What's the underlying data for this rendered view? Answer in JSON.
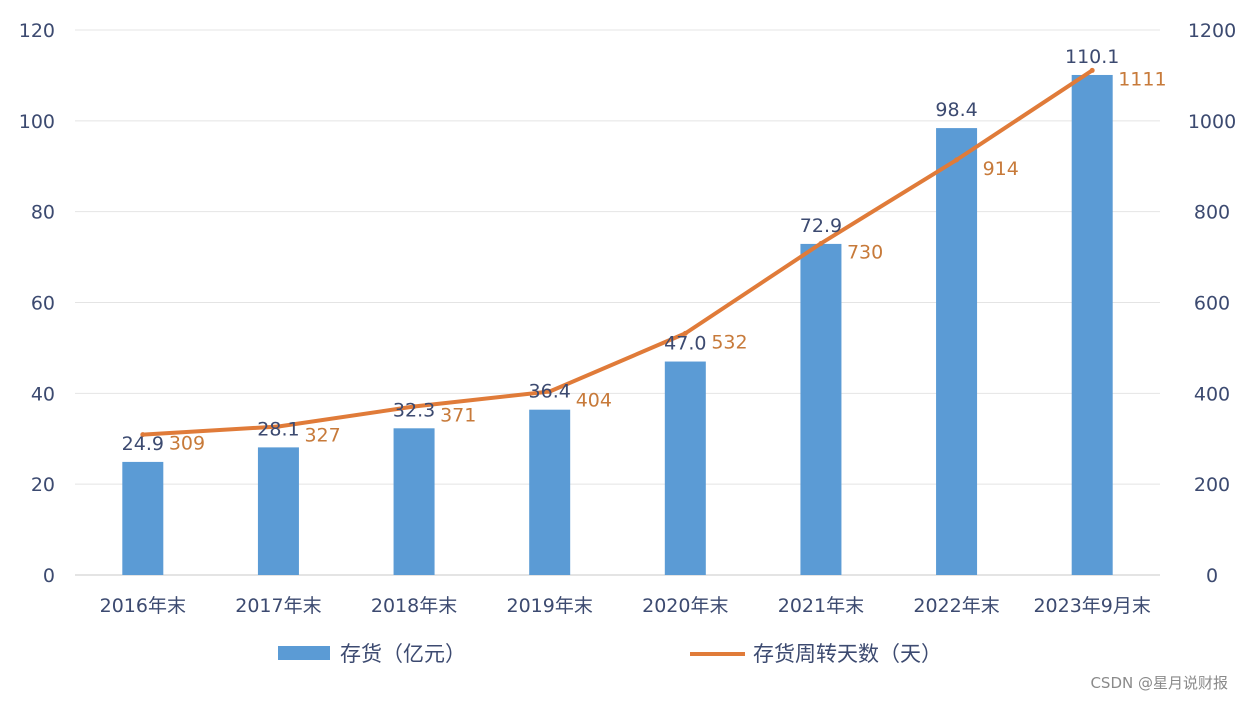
{
  "chart_data": {
    "type": "bar",
    "categories": [
      "2016年末",
      "2017年末",
      "2018年末",
      "2019年末",
      "2020年末",
      "2021年末",
      "2022年末",
      "2023年9月末"
    ],
    "series": [
      {
        "name": "存货（亿元）",
        "type": "bar",
        "axis": "left",
        "color": "#5b9bd5",
        "values": [
          24.9,
          28.1,
          32.3,
          36.4,
          47.0,
          72.9,
          98.4,
          110.1
        ]
      },
      {
        "name": "存货周转天数（天）",
        "type": "line",
        "axis": "right",
        "color": "#e07b39",
        "values": [
          309,
          327,
          371,
          404,
          532,
          730,
          914,
          1111
        ]
      }
    ],
    "bar_labels": [
      "24.9",
      "28.1",
      "32.3",
      "36.4",
      "47.0",
      "72.9",
      "98.4",
      "110.1"
    ],
    "line_labels": [
      "309",
      "327",
      "371",
      "404",
      "532",
      "730",
      "914",
      "1111"
    ],
    "ylim_left": [
      0,
      120
    ],
    "yticks_left": [
      "0",
      "20",
      "40",
      "60",
      "80",
      "100",
      "120"
    ],
    "ylim_right": [
      0,
      1200
    ],
    "yticks_right": [
      "0",
      "200",
      "400",
      "600",
      "800",
      "1000",
      "1200"
    ],
    "grid": true,
    "legend_position": "bottom"
  },
  "watermark": "CSDN @星月说财报"
}
